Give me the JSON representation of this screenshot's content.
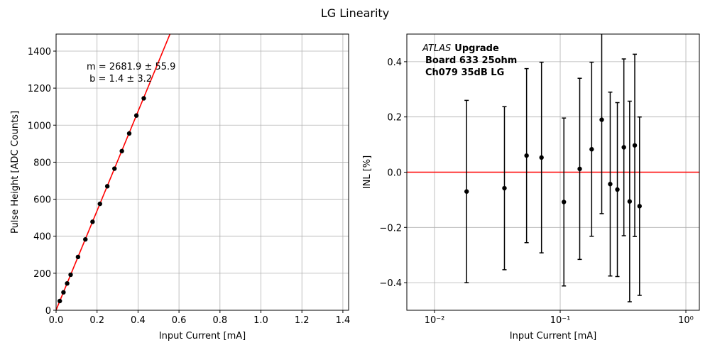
{
  "title": "LG Linearity",
  "chart_data": [
    {
      "type": "scatter",
      "xlabel": "Input Current [mA]",
      "ylabel": "Pulse Height [ADC Counts]",
      "annotation": [
        "m = 2681.9 ± 55.9",
        " b = 1.4 ± 3.2"
      ],
      "x": [
        0.018,
        0.036,
        0.054,
        0.071,
        0.107,
        0.143,
        0.178,
        0.214,
        0.25,
        0.285,
        0.321,
        0.357,
        0.392,
        0.428
      ],
      "values": [
        50,
        97,
        145,
        192,
        288,
        383,
        478,
        575,
        670,
        765,
        860,
        955,
        1052,
        1145
      ],
      "color": "#000000",
      "fit": {
        "color": "#ff0000",
        "x": [
          0,
          0.56
        ],
        "y": [
          1.4,
          1503
        ]
      },
      "xlim": [
        0,
        1.428
      ],
      "ylim": [
        0,
        1492
      ],
      "xticks": [
        {
          "value": 0,
          "label": "0.0"
        },
        0.2,
        0.4,
        0.6,
        0.8,
        {
          "value": 1,
          "label": "1.0"
        },
        1.2,
        1.4
      ],
      "yticks": [
        0,
        200,
        400,
        600,
        800,
        1000,
        1200,
        1400
      ],
      "grid": true
    },
    {
      "type": "errorbar",
      "xlabel": "Input Current [mA]",
      "ylabel": "INL [%]",
      "annotation": {
        "italic": "ATLAS",
        "bold": [
          "Upgrade",
          "Board 633 25ohm",
          "Ch079 35dB LG"
        ]
      },
      "x": [
        0.018,
        0.036,
        0.054,
        0.071,
        0.107,
        0.143,
        0.178,
        0.214,
        0.25,
        0.285,
        0.321,
        0.357,
        0.392,
        0.428
      ],
      "values": [
        -0.07,
        -0.058,
        0.06,
        0.053,
        -0.108,
        0.012,
        0.083,
        0.19,
        -0.043,
        -0.063,
        0.09,
        -0.106,
        0.097,
        -0.123
      ],
      "errors": [
        0.33,
        0.295,
        0.315,
        0.345,
        0.304,
        0.328,
        0.315,
        0.34,
        0.333,
        0.315,
        0.32,
        0.363,
        0.33,
        0.323
      ],
      "color": "#000000",
      "hline": {
        "value": 0,
        "color": "#ff0000"
      },
      "xscale": "log",
      "xlim": [
        0.00602,
        1.28
      ],
      "ylim": [
        -0.5,
        0.5
      ],
      "xticks": [
        {
          "value": 0.01,
          "label": "10⁻²"
        },
        {
          "value": 0.1,
          "label": "10⁻¹"
        },
        {
          "value": 1,
          "label": "10⁰"
        }
      ],
      "yticks": [
        {
          "value": -0.4,
          "label": "−0.4"
        },
        {
          "value": -0.2,
          "label": "−0.2"
        },
        {
          "value": 0,
          "label": "0.0"
        },
        0.2,
        0.4
      ],
      "grid": true
    }
  ]
}
